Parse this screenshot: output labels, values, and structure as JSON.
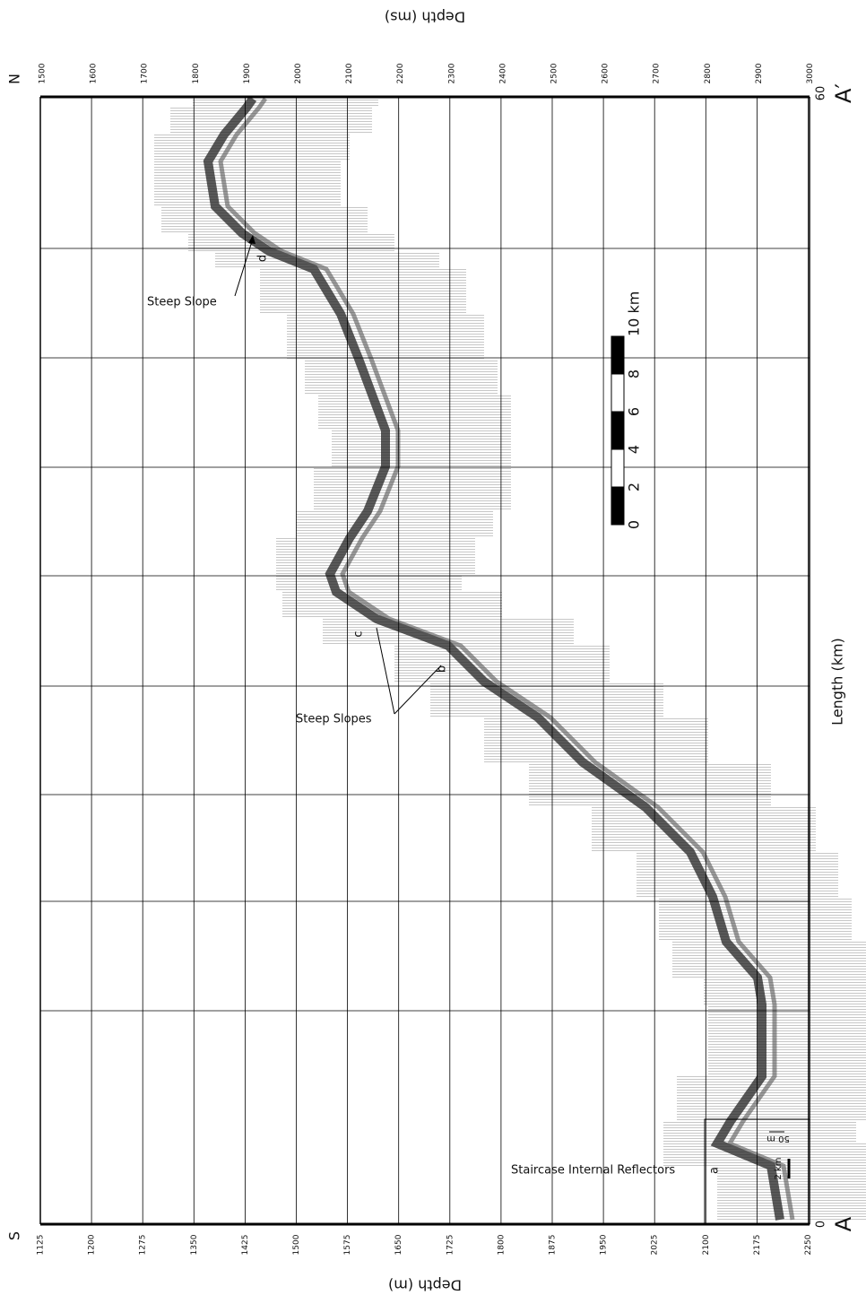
{
  "figure": {
    "depth_m_label": "Depth (m)",
    "depth_ms_label": "Depth (ms)",
    "length_label": "Length (km)",
    "depth_m_ticks": [
      "1125",
      "1200",
      "1275",
      "1350",
      "1425",
      "1500",
      "1575",
      "1650",
      "1725",
      "1800",
      "1875",
      "1950",
      "2025",
      "2100",
      "2175",
      "2250"
    ],
    "depth_ms_ticks": [
      "1500",
      "1600",
      "1700",
      "1800",
      "1900",
      "2000",
      "2100",
      "2200",
      "2300",
      "2400",
      "2500",
      "2600",
      "2700",
      "2800",
      "2900",
      "3000"
    ],
    "length_start": "0",
    "length_end": "60",
    "start_point": "A",
    "end_point": "A′",
    "start_dir": "S",
    "end_dir": "N",
    "annotations": {
      "steep_slope": "Steep Slope",
      "d": "d",
      "steep_slopes": "Steep Slopes",
      "b": "b",
      "c": "c",
      "staircase": "Staircase Internal Reflectors",
      "a": "a",
      "inset_2km": "2 km",
      "inset_50m": "50 m"
    },
    "scale_bar": [
      "0",
      "2",
      "4",
      "6",
      "8",
      "10 km"
    ]
  }
}
